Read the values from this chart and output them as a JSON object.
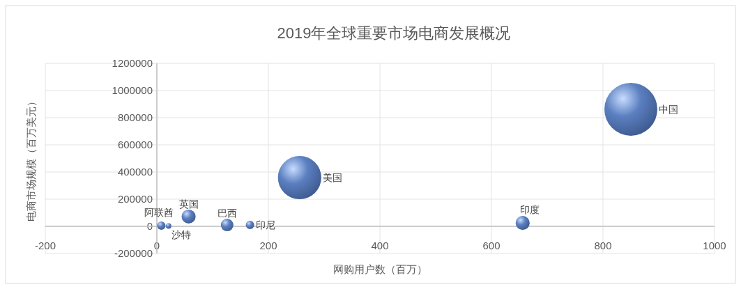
{
  "chart_data": {
    "type": "bubble",
    "title": "2019年全球重要市场电商发展概况",
    "xlabel": "网购用户数（百万）",
    "ylabel": "电商市场规模（百万美元）",
    "xlim": [
      -200,
      1000
    ],
    "xticks": [
      -200,
      0,
      200,
      400,
      600,
      800,
      1000
    ],
    "ylim": [
      -200000,
      1200000
    ],
    "yticks": [
      -200000,
      0,
      200000,
      400000,
      600000,
      800000,
      1000000,
      1200000
    ],
    "grid": true,
    "legend": false,
    "series": [
      {
        "name": "中国",
        "color": "#5b7fc0",
        "x": [
          850
        ],
        "values": [
          862000
        ],
        "sizes": [
          1
        ]
      },
      {
        "name": "美国",
        "color": "#5b7fc0",
        "x": [
          256
        ],
        "values": [
          359000
        ],
        "sizes": [
          0.67
        ]
      },
      {
        "name": "印度",
        "color": "#5b7fc0",
        "x": [
          656
        ],
        "values": [
          25000
        ],
        "sizes": [
          0.07
        ]
      },
      {
        "name": "英国",
        "color": "#5b7fc0",
        "x": [
          57
        ],
        "values": [
          72000
        ],
        "sizes": [
          0.07
        ]
      },
      {
        "name": "巴西",
        "color": "#5b7fc0",
        "x": [
          126
        ],
        "values": [
          10000
        ],
        "sizes": [
          0.056
        ]
      },
      {
        "name": "印尼",
        "color": "#5b7fc0",
        "x": [
          167
        ],
        "values": [
          10000
        ],
        "sizes": [
          0.025
        ]
      },
      {
        "name": "阿联酋",
        "color": "#5b7fc0",
        "x": [
          8
        ],
        "values": [
          5000
        ],
        "sizes": [
          0.025
        ]
      },
      {
        "name": "沙特",
        "color": "#5b7fc0",
        "x": [
          21
        ],
        "values": [
          3000
        ],
        "sizes": [
          0.011
        ]
      }
    ]
  }
}
